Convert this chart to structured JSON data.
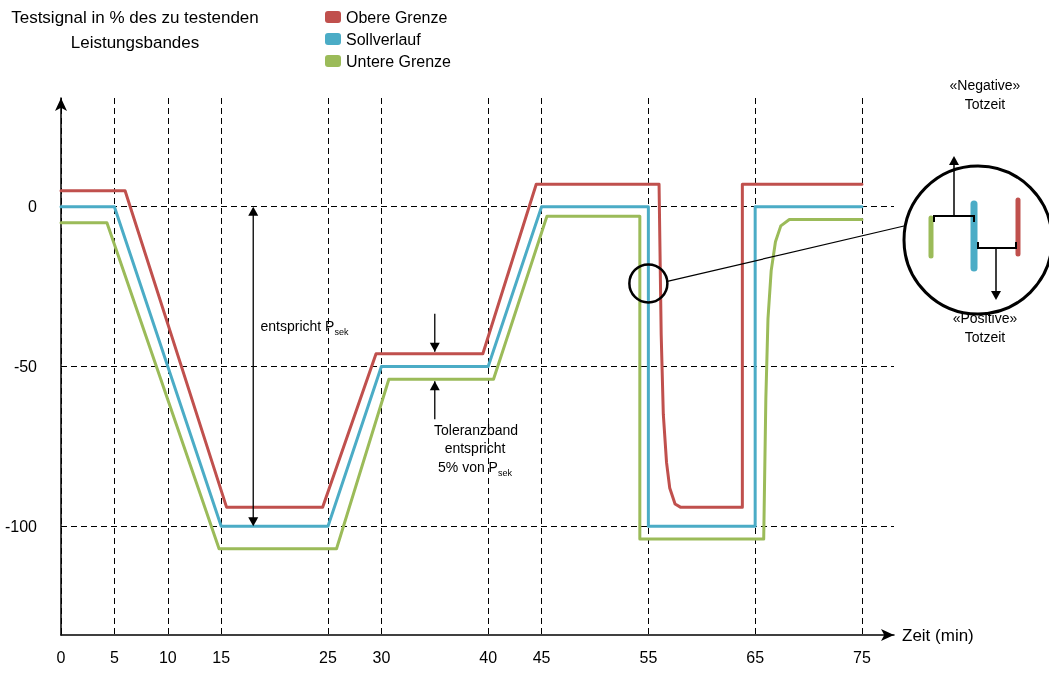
{
  "chart_data": {
    "type": "line",
    "ylabel": "Testsignal in % des zu testenden Leistungsbandes",
    "xlabel": "Zeit (min)",
    "xlim": [
      0,
      78
    ],
    "xticks": [
      0,
      5,
      10,
      15,
      25,
      30,
      40,
      45,
      55,
      65,
      75
    ],
    "ylim": [
      -134,
      34
    ],
    "yticks": [
      0,
      -50,
      -100
    ],
    "grid": true,
    "legend": "top",
    "marker": "none",
    "line_style": "solid",
    "series": [
      {
        "name": "Obere Grenze",
        "color": "#c0504d",
        "x": [
          0,
          6,
          15.5,
          24.5,
          29.5,
          39.5,
          44.5,
          56,
          56.2,
          56.4,
          56.7,
          57,
          57.5,
          58,
          63.8,
          63.8,
          75
        ],
        "values": [
          5,
          5,
          -94,
          -94,
          -46,
          -46,
          7,
          7,
          -40,
          -65,
          -80,
          -88,
          -93,
          -94,
          -94,
          7,
          7
        ]
      },
      {
        "name": "Sollverlauf",
        "color": "#4bacc6",
        "x": [
          0,
          5,
          15,
          25,
          30,
          40,
          45,
          55,
          55,
          65,
          65,
          75
        ],
        "values": [
          0,
          0,
          -100,
          -100,
          -50,
          -50,
          0,
          0,
          -100,
          -100,
          0,
          0
        ]
      },
      {
        "name": "Untere Grenze",
        "color": "#9bbb59",
        "x": [
          0,
          4.3,
          14.8,
          25.8,
          30.7,
          40.5,
          45.5,
          54.2,
          54.2,
          65.8,
          66,
          66.2,
          66.5,
          66.9,
          67.4,
          68.2,
          75
        ],
        "values": [
          -5,
          -5,
          -107,
          -107,
          -54,
          -54,
          -3,
          -3,
          -104,
          -104,
          -60,
          -35,
          -20,
          -11,
          -6,
          -4,
          -4
        ]
      }
    ],
    "annotations": [
      "entspricht P$_{sek}$",
      {
        "text": "Toleranzband entspricht 5% von P$_{sek}$",
        "x": 35,
        "y": -54
      },
      "«Negative» Totzeit",
      "«Positive» Totzeit"
    ]
  }
}
